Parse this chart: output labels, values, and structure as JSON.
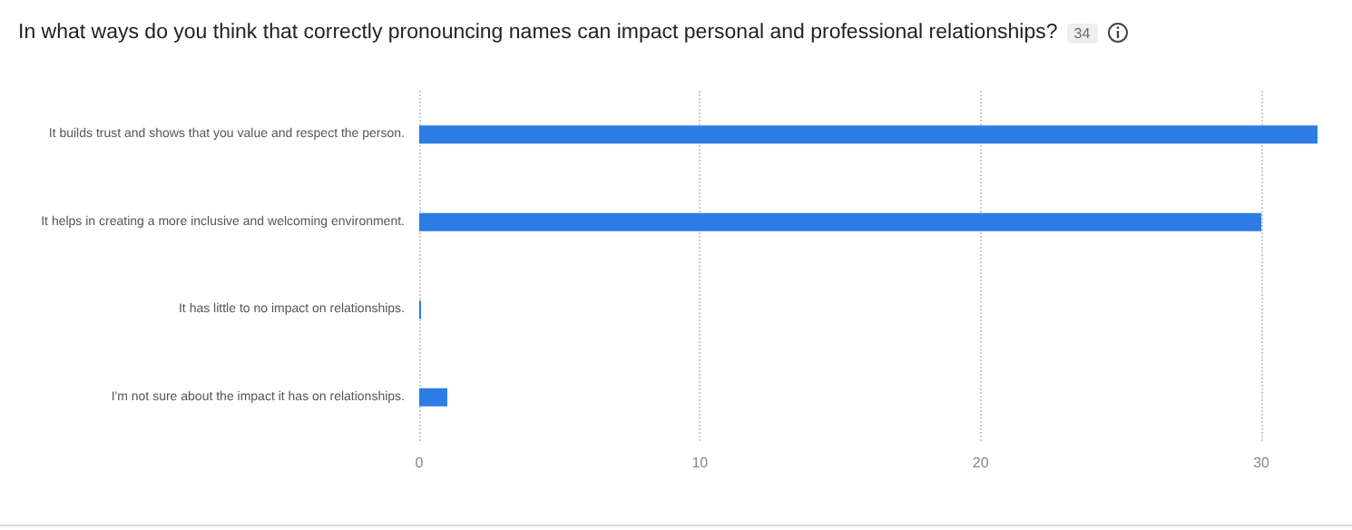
{
  "chart_data": {
    "type": "bar",
    "orientation": "horizontal",
    "title": "In what ways do you think that correctly pronouncing names can impact personal and professional relationships?",
    "annotations": [
      "34"
    ],
    "categories": [
      "It builds trust and shows that you value and respect the person.",
      "It helps in creating a more inclusive and welcoming environment.",
      "It has little to no impact on relationships.",
      "I'm not sure about the impact it has on relationships."
    ],
    "values": [
      32,
      30,
      0,
      1
    ],
    "color": "#2d7ce6",
    "xlim": [
      0,
      32
    ],
    "xticks": [
      0,
      10,
      20,
      30
    ],
    "grid": "x"
  }
}
